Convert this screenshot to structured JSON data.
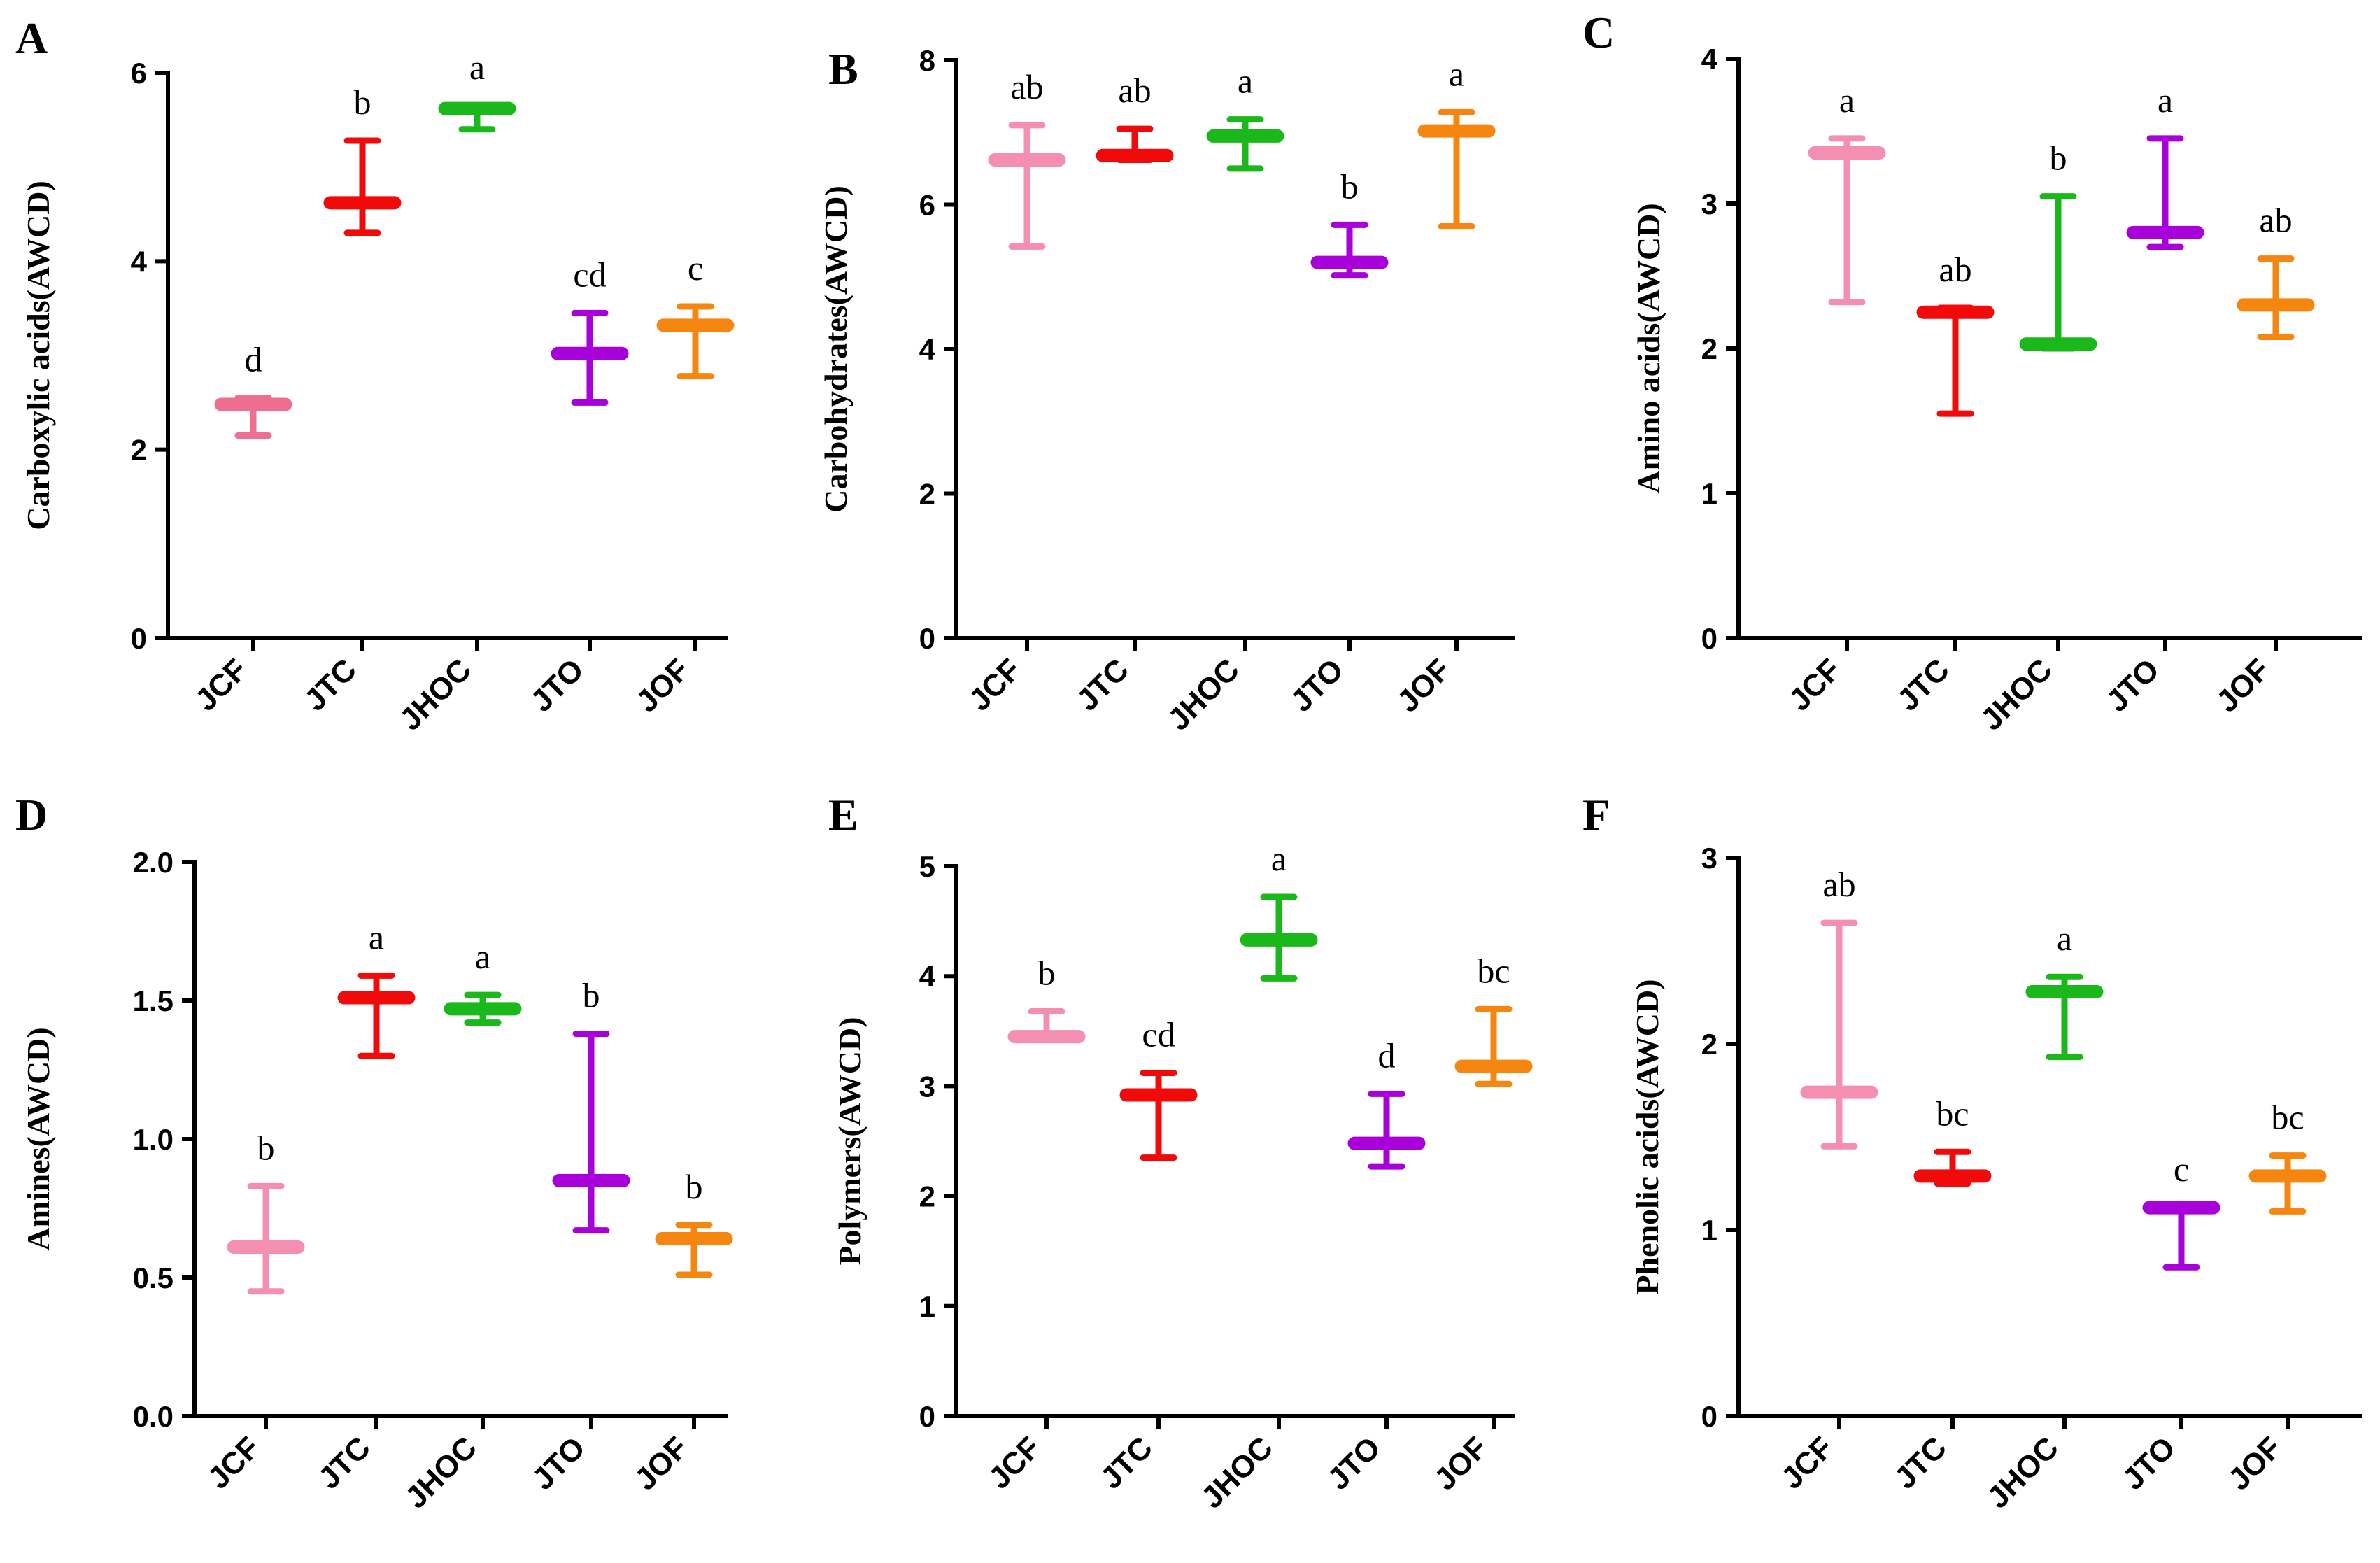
{
  "figure_colors": {
    "JCF": "#f48fb1",
    "JCF_panelA": "#ee6e8f",
    "JTC": "#f00a0a",
    "JHOC": "#1ab81a",
    "JTO": "#a700d9",
    "JOF": "#f5860f"
  },
  "chart_data": [
    {
      "type": "boxplot",
      "panel": "A",
      "title": "",
      "xlabel": "",
      "ylabel": "Carboxylic acids(AWCD)",
      "ylim": [
        0,
        6
      ],
      "yticks": [
        0,
        2,
        4,
        6
      ],
      "ytick_labels": [
        "0",
        "2",
        "4",
        "6"
      ],
      "categories": [
        "JCF",
        "JTC",
        "JHOC",
        "JTO",
        "JOF"
      ],
      "min": [
        2.15,
        4.3,
        5.4,
        2.5,
        2.78
      ],
      "median": [
        2.48,
        4.62,
        5.62,
        3.02,
        3.32
      ],
      "max": [
        2.55,
        5.28,
        5.65,
        3.45,
        3.52
      ],
      "significance": [
        "d",
        "b",
        "a",
        "cd",
        "c"
      ]
    },
    {
      "type": "boxplot",
      "panel": "B",
      "title": "",
      "xlabel": "",
      "ylabel": "Carbohydrates(AWCD)",
      "ylim": [
        0,
        8
      ],
      "yticks": [
        0,
        2,
        4,
        6,
        8
      ],
      "ytick_labels": [
        "0",
        "2",
        "4",
        "6",
        "8"
      ],
      "categories": [
        "JCF",
        "JTC",
        "JHOC",
        "JTO",
        "JOF"
      ],
      "min": [
        5.42,
        6.62,
        6.5,
        5.02,
        5.7
      ],
      "median": [
        6.62,
        6.68,
        6.95,
        5.2,
        7.02
      ],
      "max": [
        7.1,
        7.05,
        7.18,
        5.72,
        7.28
      ],
      "significance": [
        "ab",
        "ab",
        "a",
        "b",
        "a"
      ]
    },
    {
      "type": "boxplot",
      "panel": "C",
      "title": "",
      "xlabel": "",
      "ylabel": "Amino acids(AWCD)",
      "ylim": [
        0,
        4
      ],
      "yticks": [
        0,
        1,
        2,
        3,
        4
      ],
      "ytick_labels": [
        "0",
        "1",
        "2",
        "3",
        "4"
      ],
      "categories": [
        "JCF",
        "JTC",
        "JHOC",
        "JTO",
        "JOF"
      ],
      "min": [
        2.32,
        1.55,
        2.0,
        2.7,
        2.08
      ],
      "median": [
        3.35,
        2.25,
        2.03,
        2.8,
        2.3
      ],
      "max": [
        3.45,
        2.28,
        3.05,
        3.45,
        2.62
      ],
      "significance": [
        "a",
        "ab",
        "b",
        "a",
        "ab"
      ]
    },
    {
      "type": "boxplot",
      "panel": "D",
      "title": "",
      "xlabel": "",
      "ylabel": "Amines(AWCD)",
      "ylim": [
        0,
        2
      ],
      "yticks": [
        0,
        0.5,
        1,
        1.5,
        2
      ],
      "ytick_labels": [
        "0.0",
        "0.5",
        "1.0",
        "1.5",
        "2.0"
      ],
      "categories": [
        "JCF",
        "JTC",
        "JHOC",
        "JTO",
        "JOF"
      ],
      "min": [
        0.45,
        1.3,
        1.42,
        0.67,
        0.51
      ],
      "median": [
        0.61,
        1.51,
        1.47,
        0.85,
        0.64
      ],
      "max": [
        0.83,
        1.59,
        1.52,
        1.38,
        0.69
      ],
      "significance": [
        "b",
        "a",
        "a",
        "b",
        "b"
      ]
    },
    {
      "type": "boxplot",
      "panel": "E",
      "title": "",
      "xlabel": "",
      "ylabel": "Polymers(AWCD)",
      "ylim": [
        0,
        5
      ],
      "yticks": [
        0,
        1,
        2,
        3,
        4,
        5
      ],
      "ytick_labels": [
        "0",
        "1",
        "2",
        "3",
        "4",
        "5"
      ],
      "categories": [
        "JCF",
        "JTC",
        "JHOC",
        "JTO",
        "JOF"
      ],
      "min": [
        3.42,
        2.35,
        3.98,
        2.27,
        3.02
      ],
      "median": [
        3.45,
        2.92,
        4.33,
        2.48,
        3.18
      ],
      "max": [
        3.68,
        3.12,
        4.72,
        2.93,
        3.7
      ],
      "significance": [
        "b",
        "cd",
        "a",
        "d",
        "bc"
      ]
    },
    {
      "type": "boxplot",
      "panel": "F",
      "title": "",
      "xlabel": "",
      "ylabel": "Phenolic acids(AWCD)",
      "ylim": [
        0,
        3
      ],
      "yticks": [
        0,
        1,
        2,
        3
      ],
      "ytick_labels": [
        "0",
        "1",
        "2",
        "3"
      ],
      "categories": [
        "JCF",
        "JTC",
        "JHOC",
        "JTO",
        "JOF"
      ],
      "min": [
        1.45,
        1.25,
        1.93,
        0.8,
        1.1
      ],
      "median": [
        1.74,
        1.29,
        2.28,
        1.12,
        1.29
      ],
      "max": [
        2.65,
        1.42,
        2.36,
        1.12,
        1.4
      ],
      "significance": [
        "ab",
        "bc",
        "a",
        "c",
        "bc"
      ]
    }
  ]
}
